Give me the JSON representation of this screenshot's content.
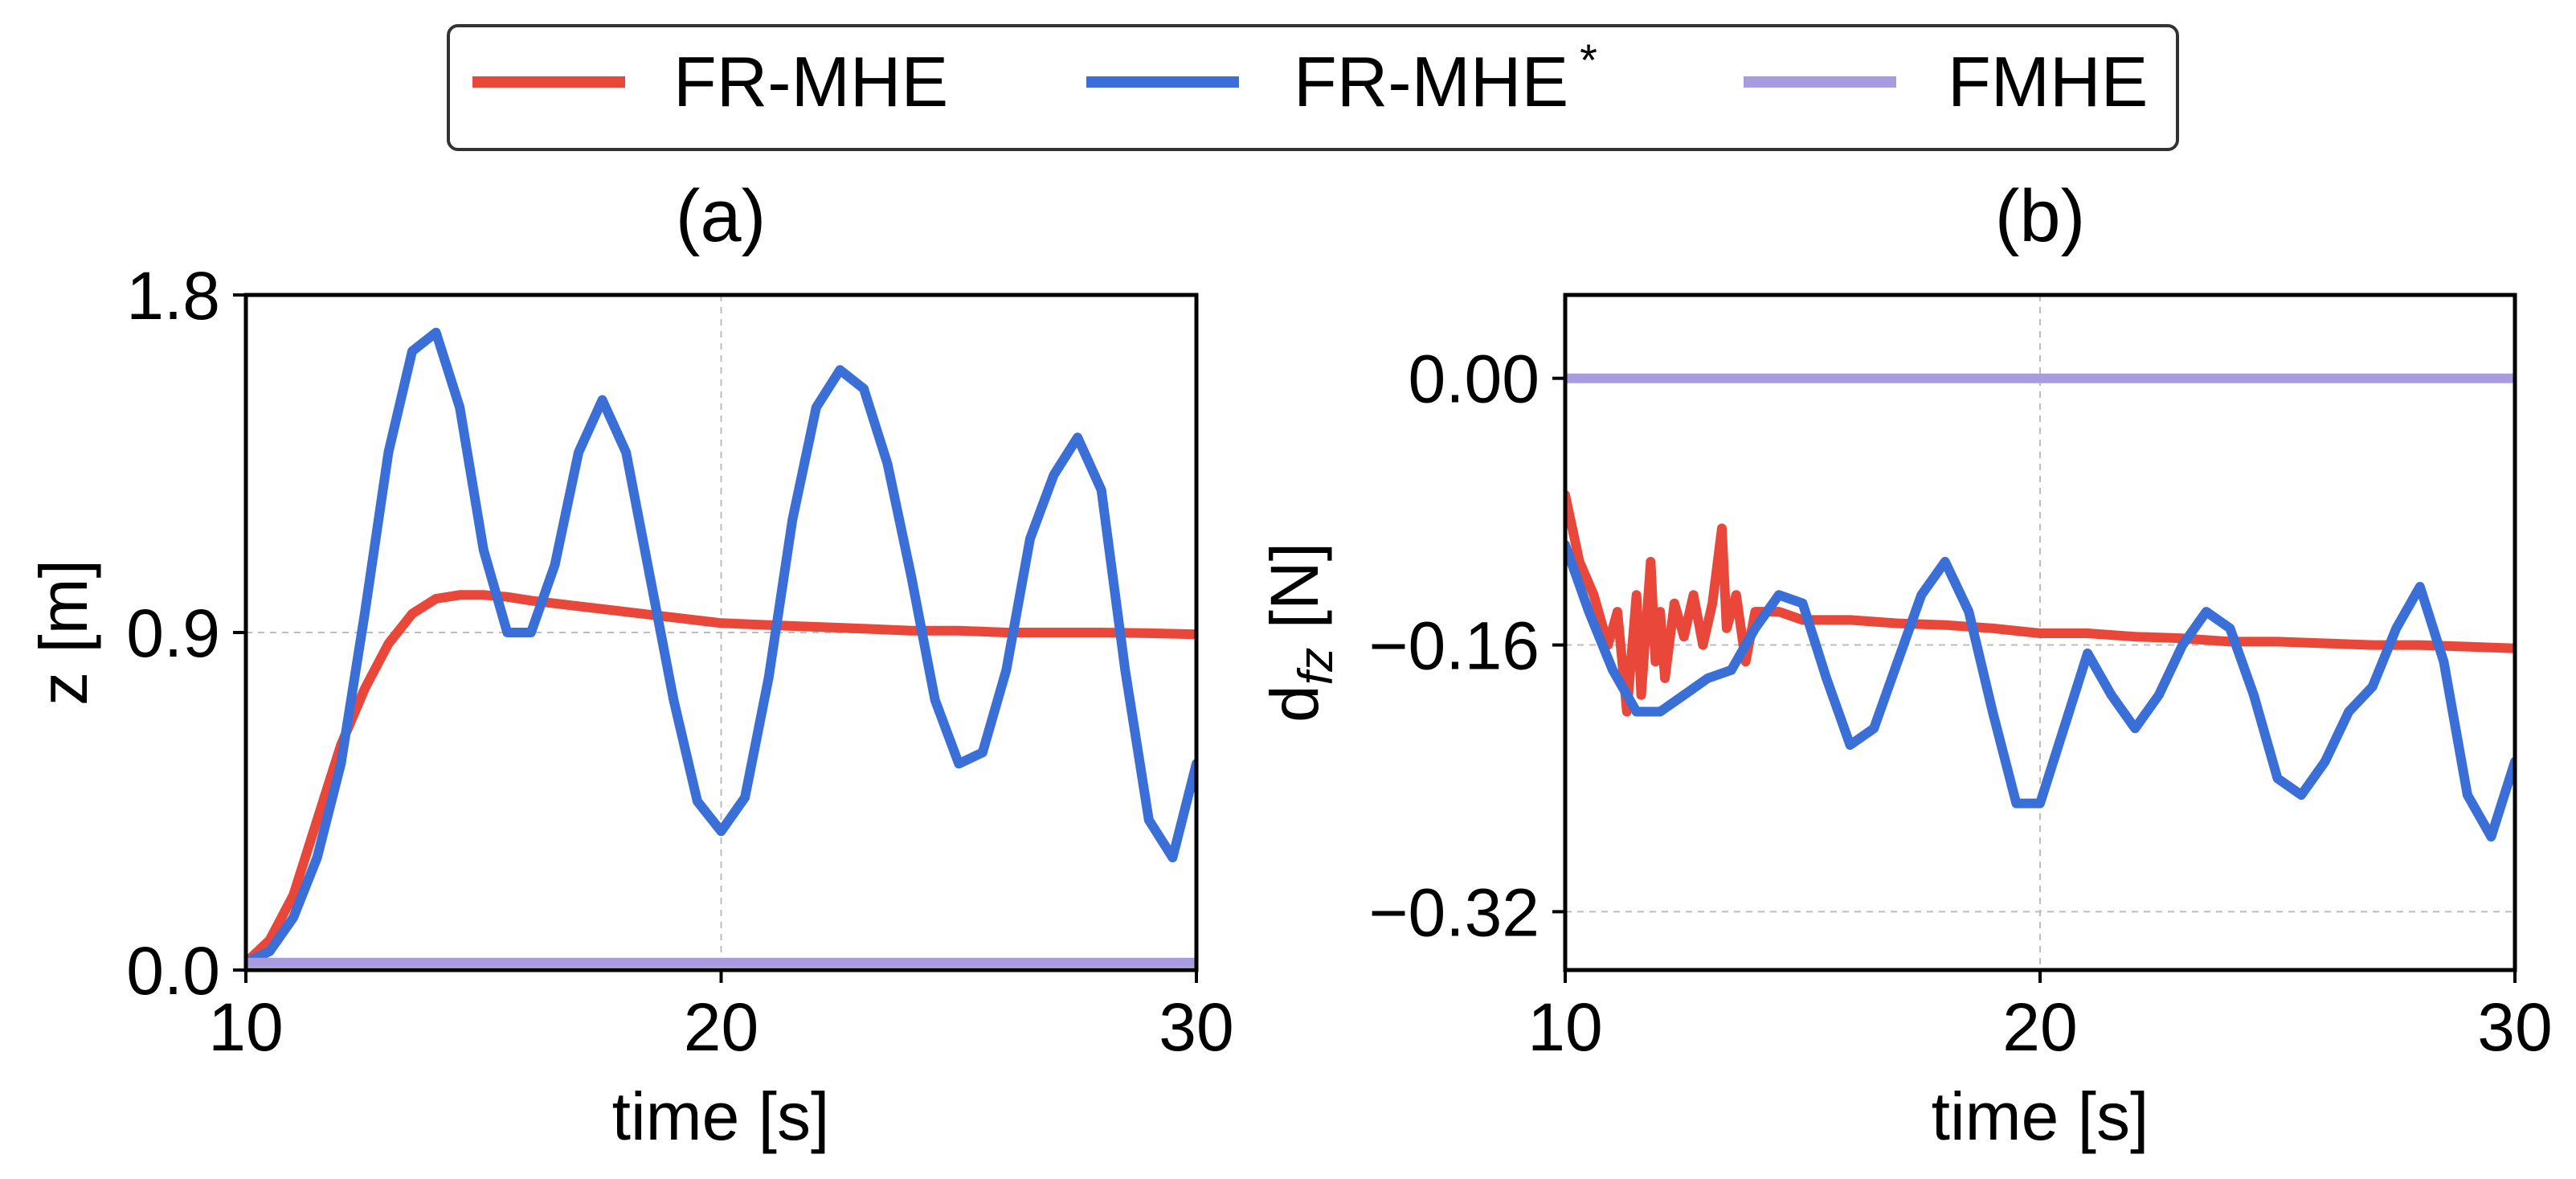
{
  "chart_data": [
    {
      "type": "line",
      "title": "(a)",
      "xlabel": "time [s]",
      "ylabel": "z [m]",
      "xlim": [
        10,
        30
      ],
      "ylim": [
        0.0,
        1.8
      ],
      "xticks": [
        10,
        20,
        30
      ],
      "yticks": [
        0.0,
        0.9,
        1.8
      ],
      "xtick_labels": [
        "10",
        "20",
        "30"
      ],
      "ytick_labels": [
        "0.0",
        "0.9",
        "1.8"
      ],
      "grid": true,
      "series": [
        {
          "name": "FR-MHE",
          "color": "#E8473A",
          "x": [
            10.0,
            10.5,
            11.0,
            11.5,
            12.0,
            12.5,
            13.0,
            13.5,
            14.0,
            14.5,
            15.0,
            15.5,
            16.0,
            17.0,
            18.0,
            19.0,
            20.0,
            21.0,
            22.0,
            23.0,
            24.0,
            25.0,
            26.0,
            27.0,
            28.0,
            29.0,
            30.0
          ],
          "y": [
            0.02,
            0.08,
            0.2,
            0.4,
            0.6,
            0.75,
            0.87,
            0.95,
            0.99,
            1.0,
            1.0,
            0.995,
            0.985,
            0.97,
            0.955,
            0.94,
            0.925,
            0.92,
            0.915,
            0.91,
            0.905,
            0.905,
            0.9,
            0.9,
            0.9,
            0.898,
            0.895
          ]
        },
        {
          "name": "FR-MHE",
          "superscript": "*",
          "color": "#3B6FD8",
          "x": [
            10.0,
            10.5,
            11.0,
            11.5,
            12.0,
            12.5,
            13.0,
            13.5,
            14.0,
            14.5,
            15.0,
            15.5,
            16.0,
            16.5,
            17.0,
            17.5,
            18.0,
            18.5,
            19.0,
            19.5,
            20.0,
            20.5,
            21.0,
            21.5,
            22.0,
            22.5,
            23.0,
            23.5,
            24.0,
            24.5,
            25.0,
            25.5,
            26.0,
            26.5,
            27.0,
            27.5,
            28.0,
            28.5,
            29.0,
            29.5,
            30.0
          ],
          "y": [
            0.02,
            0.05,
            0.14,
            0.3,
            0.55,
            0.95,
            1.38,
            1.65,
            1.7,
            1.5,
            1.12,
            0.9,
            0.9,
            1.08,
            1.38,
            1.52,
            1.38,
            1.05,
            0.72,
            0.45,
            0.37,
            0.46,
            0.78,
            1.2,
            1.5,
            1.6,
            1.55,
            1.35,
            1.05,
            0.72,
            0.55,
            0.58,
            0.8,
            1.15,
            1.32,
            1.42,
            1.28,
            0.8,
            0.4,
            0.3,
            0.55
          ]
        },
        {
          "name": "FMHE",
          "color": "#A99BE0",
          "x": [
            10.0,
            30.0
          ],
          "y": [
            0.02,
            0.02
          ]
        }
      ]
    },
    {
      "type": "line",
      "title": "(b)",
      "xlabel": "time [s]",
      "ylabel": "d",
      "ylabel_sub": "fz",
      "ylabel_unit": " [N]",
      "xlim": [
        10,
        30
      ],
      "ylim": [
        -0.355,
        0.05
      ],
      "xticks": [
        10,
        20,
        30
      ],
      "yticks": [
        0.0,
        -0.16,
        -0.32
      ],
      "xtick_labels": [
        "10",
        "20",
        "30"
      ],
      "ytick_labels": [
        "0.00",
        "−0.16",
        "−0.32"
      ],
      "grid": true,
      "series": [
        {
          "name": "FR-MHE",
          "color": "#E8473A",
          "x": [
            10.0,
            10.3,
            10.6,
            10.9,
            11.1,
            11.3,
            11.5,
            11.6,
            11.8,
            11.9,
            12.0,
            12.1,
            12.3,
            12.5,
            12.7,
            12.9,
            13.1,
            13.3,
            13.4,
            13.6,
            13.8,
            14.0,
            14.5,
            15.0,
            15.5,
            16.0,
            17.0,
            18.0,
            19.0,
            20.0,
            21.0,
            22.0,
            23.0,
            24.0,
            25.0,
            26.0,
            27.0,
            28.0,
            29.0,
            30.0
          ],
          "y": [
            -0.07,
            -0.11,
            -0.13,
            -0.16,
            -0.14,
            -0.2,
            -0.13,
            -0.19,
            -0.11,
            -0.17,
            -0.14,
            -0.18,
            -0.135,
            -0.155,
            -0.13,
            -0.16,
            -0.135,
            -0.09,
            -0.15,
            -0.13,
            -0.17,
            -0.14,
            -0.14,
            -0.145,
            -0.145,
            -0.145,
            -0.147,
            -0.148,
            -0.15,
            -0.153,
            -0.153,
            -0.155,
            -0.156,
            -0.158,
            -0.158,
            -0.159,
            -0.16,
            -0.16,
            -0.161,
            -0.162
          ]
        },
        {
          "name": "FR-MHE",
          "superscript": "*",
          "color": "#3B6FD8",
          "x": [
            10.0,
            10.5,
            11.0,
            11.5,
            12.0,
            12.5,
            13.0,
            13.5,
            14.0,
            14.5,
            15.0,
            15.5,
            16.0,
            16.5,
            17.0,
            17.5,
            18.0,
            18.5,
            19.0,
            19.5,
            20.0,
            20.5,
            21.0,
            21.5,
            22.0,
            22.5,
            23.0,
            23.5,
            24.0,
            24.5,
            25.0,
            25.5,
            26.0,
            26.5,
            27.0,
            27.5,
            28.0,
            28.5,
            29.0,
            29.5,
            30.0
          ],
          "y": [
            -0.1,
            -0.14,
            -0.175,
            -0.2,
            -0.2,
            -0.19,
            -0.18,
            -0.175,
            -0.15,
            -0.13,
            -0.135,
            -0.18,
            -0.22,
            -0.21,
            -0.17,
            -0.13,
            -0.11,
            -0.14,
            -0.2,
            -0.255,
            -0.255,
            -0.21,
            -0.165,
            -0.19,
            -0.21,
            -0.19,
            -0.16,
            -0.14,
            -0.15,
            -0.19,
            -0.24,
            -0.25,
            -0.23,
            -0.2,
            -0.185,
            -0.15,
            -0.125,
            -0.17,
            -0.25,
            -0.275,
            -0.23
          ]
        },
        {
          "name": "FMHE",
          "color": "#A99BE0",
          "x": [
            10.0,
            30.0
          ],
          "y": [
            0.0,
            0.0
          ]
        }
      ]
    }
  ],
  "legend": {
    "placement": "top-center",
    "entries": [
      {
        "label": "FR-MHE",
        "superscript": "",
        "color": "#E8473A"
      },
      {
        "label": "FR-MHE",
        "superscript": "*",
        "color": "#3B6FD8"
      },
      {
        "label": "FMHE",
        "superscript": "",
        "color": "#A99BE0"
      }
    ]
  }
}
